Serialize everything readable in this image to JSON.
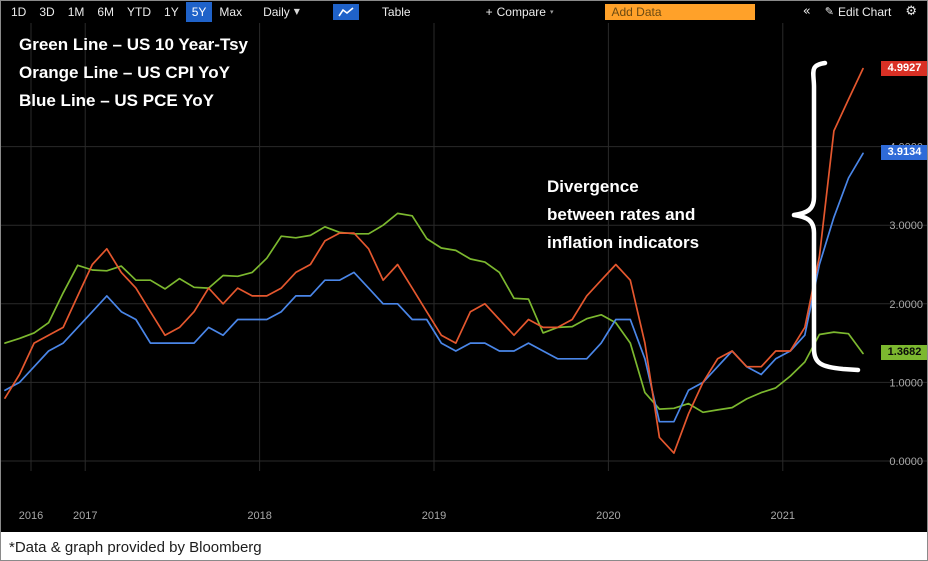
{
  "toolbar": {
    "ranges": [
      "1D",
      "3D",
      "1M",
      "6M",
      "YTD",
      "1Y",
      "5Y",
      "Max"
    ],
    "active_range": "5Y",
    "frequency_label": "Daily",
    "table_label": "Table",
    "compare_label": "Compare",
    "add_data_placeholder": "Add Data",
    "edit_chart_label": "Edit Chart"
  },
  "legend": {
    "line1": "Green Line – US 10 Year-Tsy",
    "line2": "Orange Line – US CPI YoY",
    "line3": "Blue Line – US PCE YoY"
  },
  "annotation": {
    "line1": "Divergence",
    "line2": "between rates and",
    "line3": "inflation indicators"
  },
  "footer": {
    "source_note": "*Data & graph provided by Bloomberg"
  },
  "colors": {
    "background": "#000000",
    "grid": "#2a2a2a",
    "axis_text": "#a9a9a9",
    "toolbar_active": "#1f62c9",
    "add_data_bg": "#ffa129",
    "annotation_white": "#ffffff"
  },
  "chart_data": {
    "type": "line",
    "x_unit": "monthly",
    "x_range": [
      "2016-07",
      "2021-06"
    ],
    "x_ticks": [
      "2016",
      "2017",
      "2018",
      "2019",
      "2020",
      "2021"
    ],
    "y_ticks": [
      0,
      1,
      2,
      3,
      4
    ],
    "y_tick_labels": [
      "0.0000",
      "1.0000",
      "2.0000",
      "3.0000",
      "4.0000"
    ],
    "ylim": [
      -0.9,
      5.6
    ],
    "grid": true,
    "legend_position": "in-chart text (top-left)",
    "series": [
      {
        "name": "US 10 Year-Tsy",
        "color": "#7cb82f",
        "badge_color": "#7cb82f",
        "badge_text_color": "#0a0a0a",
        "last_label": "1.3682",
        "values": [
          1.5,
          1.56,
          1.63,
          1.76,
          2.14,
          2.49,
          2.43,
          2.42,
          2.48,
          2.3,
          2.3,
          2.19,
          2.32,
          2.21,
          2.2,
          2.36,
          2.35,
          2.4,
          2.58,
          2.86,
          2.84,
          2.87,
          2.98,
          2.91,
          2.89,
          2.89,
          3.0,
          3.15,
          3.12,
          2.83,
          2.71,
          2.68,
          2.57,
          2.53,
          2.4,
          2.07,
          2.06,
          1.63,
          1.7,
          1.71,
          1.81,
          1.86,
          1.76,
          1.5,
          0.87,
          0.66,
          0.67,
          0.73,
          0.62,
          0.65,
          0.68,
          0.79,
          0.87,
          0.93,
          1.08,
          1.26,
          1.61,
          1.64,
          1.62,
          1.3682
        ]
      },
      {
        "name": "US CPI YoY",
        "color": "#e4572e",
        "badge_color": "#d93025",
        "badge_text_color": "#ffffff",
        "last_label": "4.9927",
        "values": [
          0.8,
          1.1,
          1.5,
          1.6,
          1.7,
          2.1,
          2.5,
          2.7,
          2.4,
          2.2,
          1.9,
          1.6,
          1.7,
          1.9,
          2.2,
          2.0,
          2.2,
          2.1,
          2.1,
          2.2,
          2.4,
          2.5,
          2.8,
          2.9,
          2.9,
          2.7,
          2.3,
          2.5,
          2.2,
          1.9,
          1.6,
          1.5,
          1.9,
          2.0,
          1.8,
          1.6,
          1.8,
          1.7,
          1.7,
          1.8,
          2.1,
          2.3,
          2.5,
          2.3,
          1.5,
          0.3,
          0.1,
          0.6,
          1.0,
          1.3,
          1.4,
          1.2,
          1.2,
          1.4,
          1.4,
          1.7,
          2.6,
          4.2,
          4.6,
          4.9927
        ]
      },
      {
        "name": "US PCE YoY",
        "color": "#4a86e8",
        "badge_color": "#2f6bd8",
        "badge_text_color": "#ffffff",
        "last_label": "3.9134",
        "values": [
          0.9,
          1.0,
          1.2,
          1.4,
          1.5,
          1.7,
          1.9,
          2.1,
          1.9,
          1.8,
          1.5,
          1.5,
          1.5,
          1.5,
          1.7,
          1.6,
          1.8,
          1.8,
          1.8,
          1.9,
          2.1,
          2.1,
          2.3,
          2.3,
          2.4,
          2.2,
          2.0,
          2.0,
          1.8,
          1.8,
          1.5,
          1.4,
          1.5,
          1.5,
          1.4,
          1.4,
          1.5,
          1.4,
          1.3,
          1.3,
          1.3,
          1.5,
          1.8,
          1.8,
          1.3,
          0.5,
          0.5,
          0.9,
          1.0,
          1.2,
          1.4,
          1.2,
          1.1,
          1.3,
          1.4,
          1.6,
          2.5,
          3.1,
          3.6,
          3.9134
        ]
      }
    ]
  }
}
